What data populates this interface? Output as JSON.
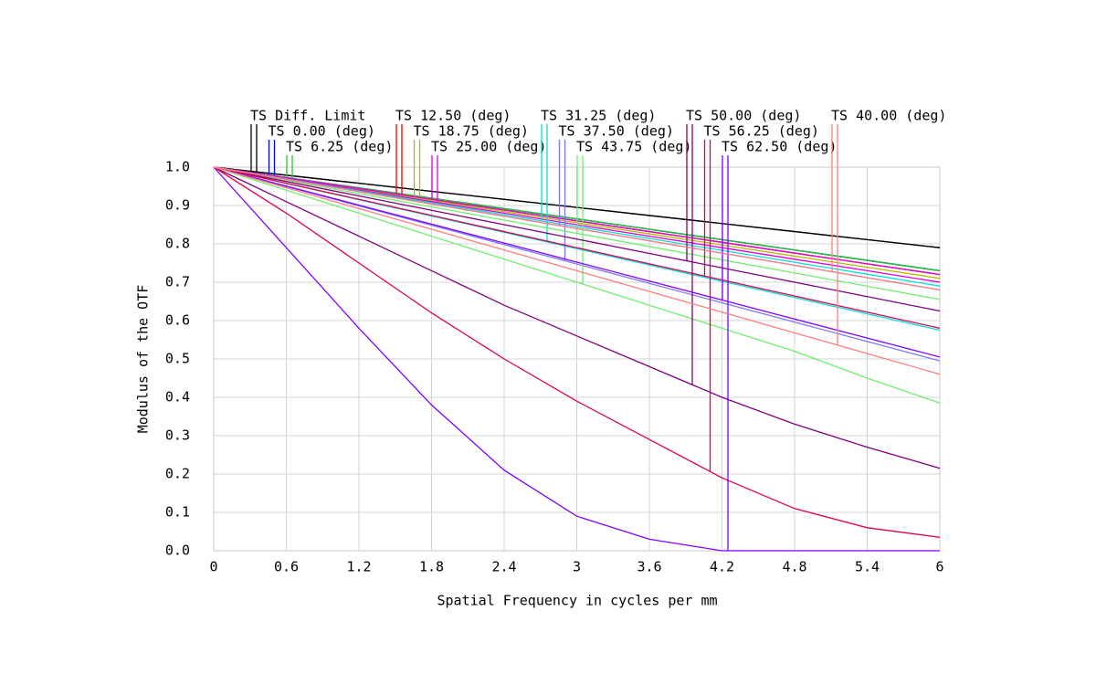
{
  "chart_data": {
    "type": "line",
    "xlabel": "Spatial Frequency in cycles per mm",
    "ylabel": "Modulus of the OTF",
    "x": [
      0,
      0.6,
      1.2,
      1.8,
      2.4,
      3,
      3.6,
      4.2,
      4.8,
      5.4,
      6
    ],
    "xlim": [
      0,
      6
    ],
    "xticks": [
      0,
      0.6,
      1.2,
      1.8,
      2.4,
      3,
      3.6,
      4.2,
      4.8,
      5.4,
      6
    ],
    "ylim": [
      0,
      1
    ],
    "yticks": [
      {
        "value": 0,
        "label": "0.0"
      },
      0.1,
      0.2,
      0.3,
      0.4,
      0.5,
      0.6,
      0.7,
      0.8,
      0.9,
      {
        "value": 1,
        "label": "1.0"
      }
    ],
    "grid": true,
    "series": [
      {
        "name": "TS Diff. Limit",
        "color": "#000000",
        "values": [
          [
            1,
            0.979,
            0.958,
            0.937,
            0.916,
            0.895,
            0.874,
            0.853,
            0.832,
            0.811,
            0.79
          ],
          [
            1,
            0.979,
            0.958,
            0.937,
            0.916,
            0.895,
            0.874,
            0.853,
            0.832,
            0.811,
            0.79
          ]
        ]
      },
      {
        "name": "TS 0.00 (deg)",
        "color": "#0000ff",
        "values": [
          [
            1,
            0.973,
            0.946,
            0.919,
            0.892,
            0.865,
            0.838,
            0.811,
            0.784,
            0.757,
            0.73
          ],
          [
            1,
            0.973,
            0.946,
            0.919,
            0.892,
            0.865,
            0.838,
            0.811,
            0.784,
            0.757,
            0.73
          ]
        ]
      },
      {
        "name": "TS 6.25 (deg)",
        "color": "#22cc22",
        "values": [
          [
            1,
            0.973,
            0.946,
            0.919,
            0.892,
            0.865,
            0.838,
            0.811,
            0.784,
            0.757,
            0.73
          ],
          [
            1,
            0.972,
            0.944,
            0.916,
            0.888,
            0.86,
            0.832,
            0.804,
            0.776,
            0.748,
            0.72
          ]
        ]
      },
      {
        "name": "TS 12.50 (deg)",
        "color": "#ee0000",
        "values": [
          [
            1,
            0.972,
            0.944,
            0.916,
            0.888,
            0.86,
            0.832,
            0.804,
            0.776,
            0.748,
            0.72
          ],
          [
            1,
            0.972,
            0.944,
            0.916,
            0.888,
            0.86,
            0.832,
            0.804,
            0.776,
            0.748,
            0.72
          ]
        ]
      },
      {
        "name": "TS 18.75 (deg)",
        "color": "#b8b800",
        "values": [
          [
            1,
            0.972,
            0.944,
            0.916,
            0.888,
            0.86,
            0.832,
            0.804,
            0.776,
            0.748,
            0.72
          ],
          [
            1,
            0.971,
            0.942,
            0.913,
            0.884,
            0.855,
            0.826,
            0.797,
            0.768,
            0.739,
            0.71
          ]
        ]
      },
      {
        "name": "TS 25.00 (deg)",
        "color": "#e000e0",
        "values": [
          [
            1,
            0.972,
            0.944,
            0.916,
            0.888,
            0.86,
            0.832,
            0.804,
            0.776,
            0.748,
            0.72
          ],
          [
            1,
            0.97,
            0.94,
            0.91,
            0.88,
            0.85,
            0.82,
            0.79,
            0.76,
            0.73,
            0.7
          ]
        ]
      },
      {
        "name": "TS 31.25 (deg)",
        "color": "#00e0e0",
        "values": [
          [
            1,
            0.969,
            0.938,
            0.907,
            0.876,
            0.845,
            0.814,
            0.783,
            0.752,
            0.721,
            0.69
          ],
          [
            1,
            0.9575,
            0.915,
            0.8725,
            0.83,
            0.7875,
            0.745,
            0.7025,
            0.66,
            0.6175,
            0.575
          ]
        ]
      },
      {
        "name": "TS 37.50 (deg)",
        "color": "#7b7bf0",
        "values": [
          [
            1,
            0.968,
            0.936,
            0.904,
            0.872,
            0.84,
            0.808,
            0.776,
            0.744,
            0.712,
            0.68
          ],
          [
            1,
            0.9495,
            0.899,
            0.8485,
            0.798,
            0.7475,
            0.697,
            0.6465,
            0.596,
            0.5455,
            0.495
          ]
        ]
      },
      {
        "name": "TS 43.75 (deg)",
        "color": "#70ee70",
        "values": [
          [
            1,
            0.9655,
            0.931,
            0.8965,
            0.862,
            0.8275,
            0.793,
            0.7585,
            0.724,
            0.6895,
            0.655
          ],
          [
            1,
            0.94,
            0.88,
            0.82,
            0.76,
            0.7,
            0.64,
            0.58,
            0.52,
            0.45,
            0.385
          ]
        ]
      },
      {
        "name": "TS 50.00 (deg)",
        "color": "#800080",
        "values": [
          [
            1,
            0.9625,
            0.925,
            0.8875,
            0.85,
            0.8125,
            0.775,
            0.7375,
            0.7,
            0.6625,
            0.625
          ],
          [
            1,
            0.91,
            0.82,
            0.73,
            0.64,
            0.56,
            0.48,
            0.4,
            0.33,
            0.27,
            0.215
          ]
        ]
      },
      {
        "name": "TS 56.25 (deg)",
        "color": "#e0004a",
        "values": [
          [
            1,
            0.958,
            0.916,
            0.874,
            0.832,
            0.79,
            0.748,
            0.706,
            0.664,
            0.622,
            0.58
          ],
          [
            1,
            0.88,
            0.75,
            0.62,
            0.5,
            0.39,
            0.29,
            0.19,
            0.11,
            0.06,
            0.035
          ]
        ]
      },
      {
        "name": "TS 62.50 (deg)",
        "color": "#8000ff",
        "values": [
          [
            1,
            0.9505,
            0.901,
            0.8515,
            0.802,
            0.7525,
            0.703,
            0.6535,
            0.604,
            0.5545,
            0.505
          ],
          [
            1,
            0.79,
            0.58,
            0.38,
            0.21,
            0.09,
            0.03,
            0,
            0,
            0,
            0
          ]
        ]
      },
      {
        "name": "TS 40.00 (deg)",
        "color": "#ff7f7f",
        "values": [
          [
            1,
            0.968,
            0.936,
            0.904,
            0.872,
            0.84,
            0.808,
            0.776,
            0.744,
            0.712,
            0.68
          ],
          [
            1,
            0.946,
            0.892,
            0.838,
            0.784,
            0.73,
            0.676,
            0.622,
            0.568,
            0.514,
            0.46
          ]
        ]
      }
    ]
  }
}
